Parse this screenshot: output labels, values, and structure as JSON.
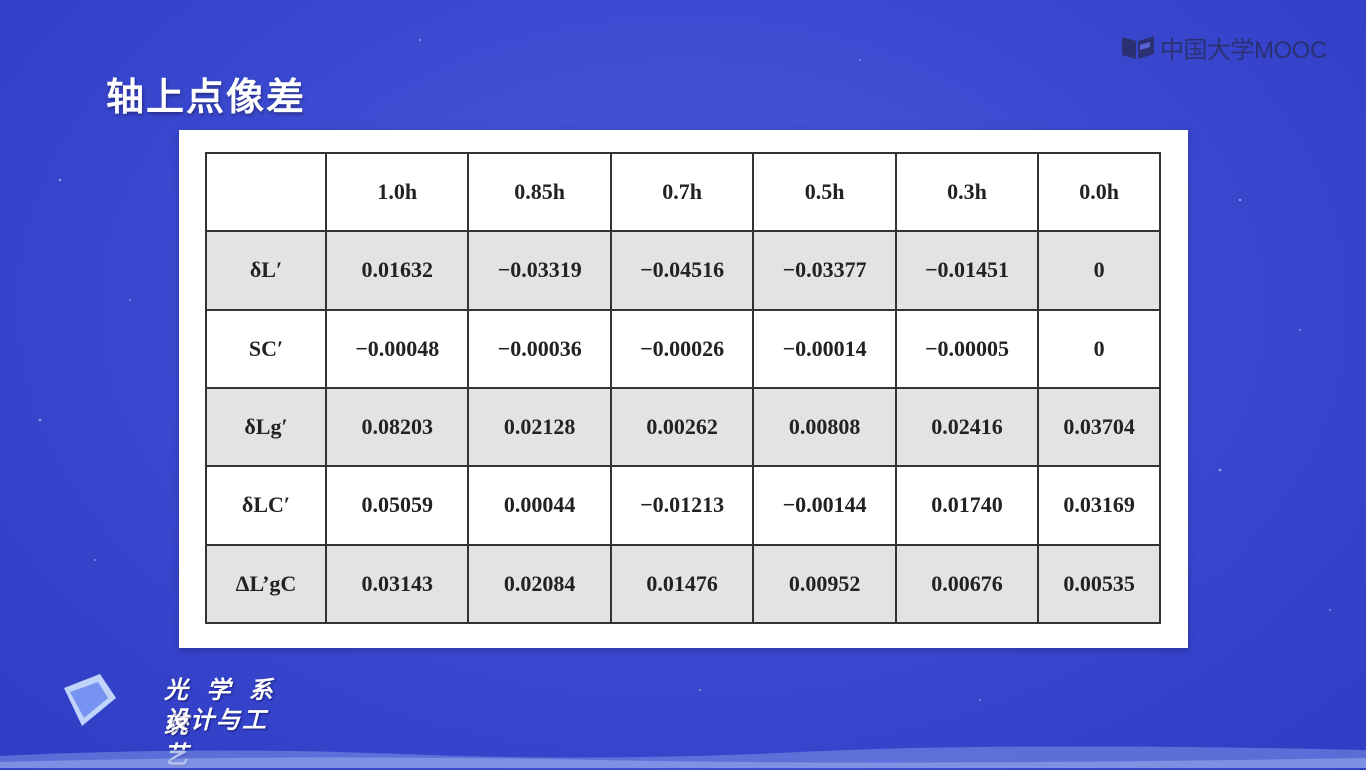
{
  "slide": {
    "title": "轴上点像差"
  },
  "logo": {
    "text": "中国大学MOOC"
  },
  "course": {
    "line1": "光 学 系 统",
    "line2": "设计与工艺"
  },
  "table": {
    "columns": [
      "",
      "1.0h",
      "0.85h",
      "0.7h",
      "0.5h",
      "0.3h",
      "0.0h"
    ],
    "rows": [
      {
        "label": "δL′",
        "values": [
          "0.01632",
          "−0.03319",
          "−0.04516",
          "−0.03377",
          "−0.01451",
          "0"
        ]
      },
      {
        "label": "SC′",
        "values": [
          "−0.00048",
          "−0.00036",
          "−0.00026",
          "−0.00014",
          "−0.00005",
          "0"
        ]
      },
      {
        "label": "δLg′",
        "values": [
          "0.08203",
          "0.02128",
          "0.00262",
          "0.00808",
          "0.02416",
          "0.03704"
        ]
      },
      {
        "label": "δLC′",
        "values": [
          "0.05059",
          "0.00044",
          "−0.01213",
          "−0.00144",
          "0.01740",
          "0.03169"
        ]
      },
      {
        "label": "ΔL’gC",
        "values": [
          "0.03143",
          "0.02084",
          "0.01476",
          "0.00952",
          "0.00676",
          "0.00535"
        ]
      }
    ]
  },
  "colors": {
    "background": "#3a48d0",
    "panel": "#ffffff",
    "shaded_row": "#e3e3e3",
    "text": "#222222"
  }
}
